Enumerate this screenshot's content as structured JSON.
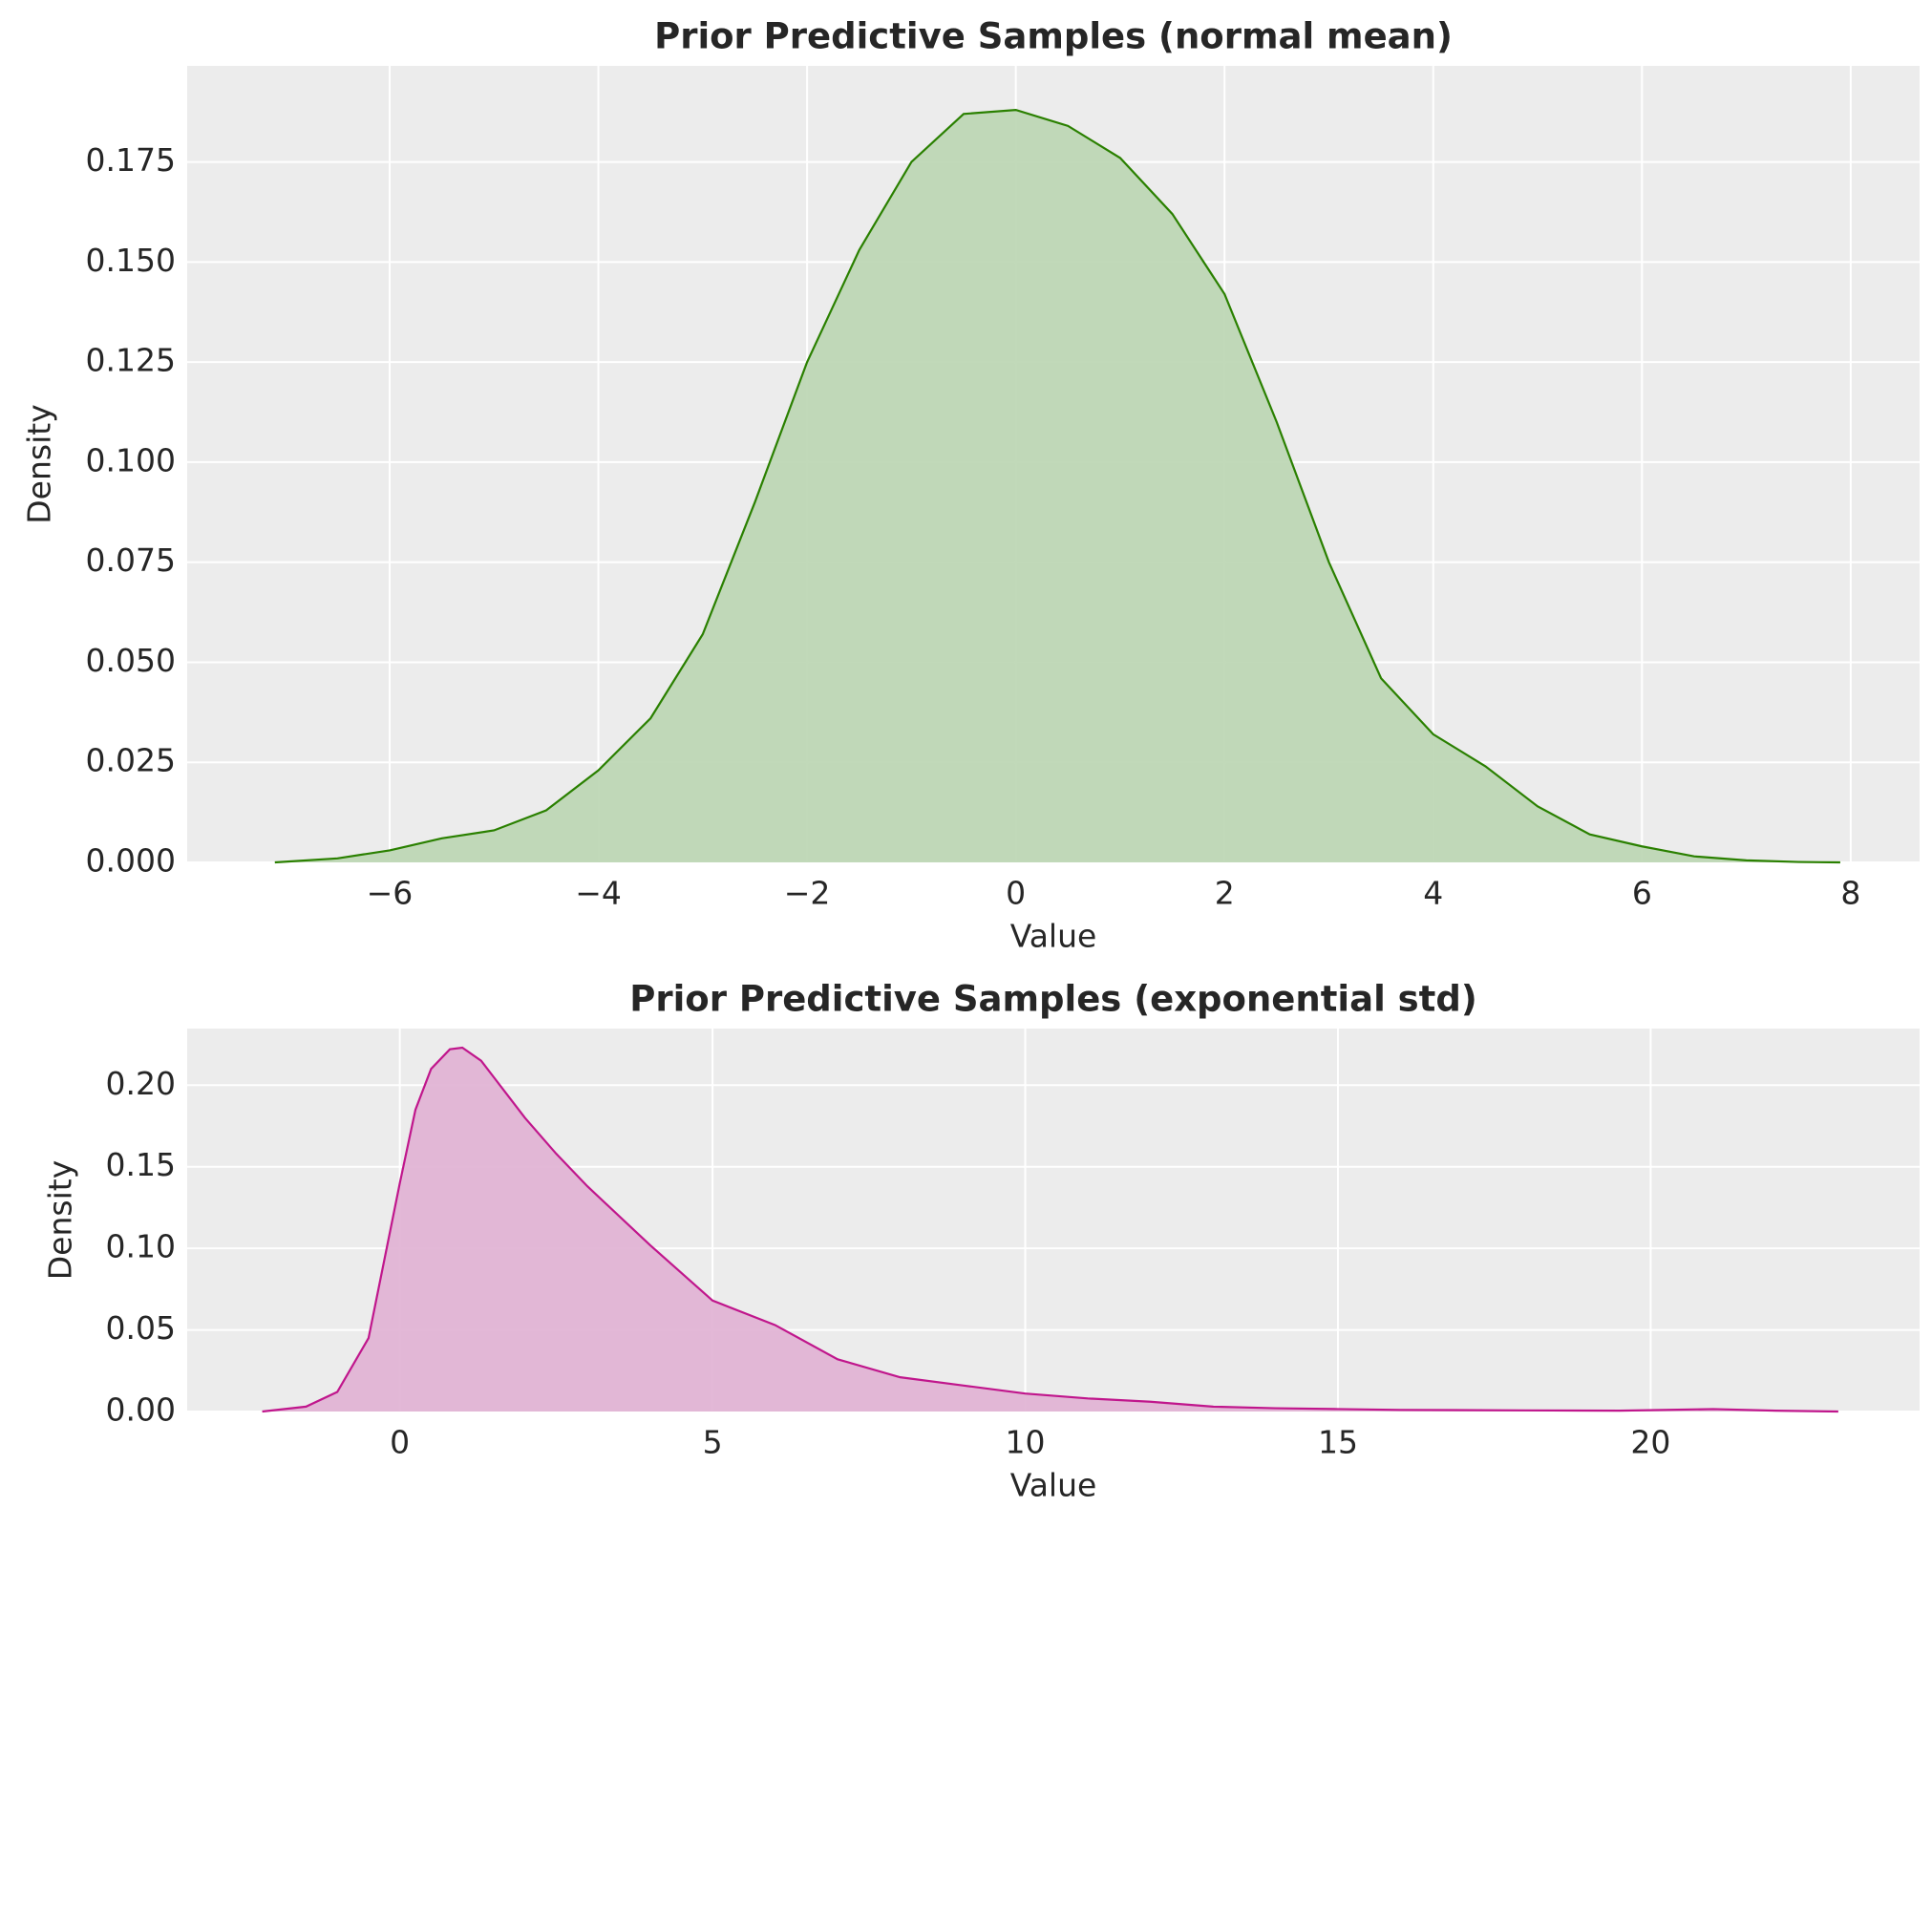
{
  "chart_data": [
    {
      "type": "area",
      "title": "Prior Predictive Samples (normal mean)",
      "x_label": "Value",
      "y_label": "Density",
      "x": [
        -7.1,
        -6.5,
        -6,
        -5.5,
        -5,
        -4.5,
        -4,
        -3.5,
        -3,
        -2.5,
        -2,
        -1.5,
        -1,
        -0.5,
        0,
        0.5,
        1,
        1.5,
        2,
        2.5,
        3,
        3.5,
        4,
        4.5,
        5,
        5.5,
        6,
        6.5,
        7,
        7.5,
        7.9
      ],
      "values": [
        0,
        0.001,
        0.003,
        0.006,
        0.008,
        0.013,
        0.023,
        0.036,
        0.057,
        0.09,
        0.125,
        0.153,
        0.175,
        0.187,
        0.188,
        0.184,
        0.176,
        0.162,
        0.142,
        0.11,
        0.075,
        0.046,
        0.032,
        0.024,
        0.014,
        0.007,
        0.004,
        0.0015,
        0.0005,
        0.0001,
        0
      ],
      "color": "#2a8000",
      "fill": "#bed7b5",
      "xlim": [
        -7.94,
        8.66
      ],
      "ylim": [
        0,
        0.199
      ],
      "xticks": [
        {
          "value": -6,
          "label": "−6"
        },
        {
          "value": -4,
          "label": "−4"
        },
        {
          "value": -2,
          "label": "−2"
        },
        0,
        2,
        4,
        6,
        8
      ],
      "yticks": [
        {
          "value": 0,
          "label": "0.000"
        },
        {
          "value": 0.025,
          "label": "0.025"
        },
        {
          "value": 0.05,
          "label": "0.050"
        },
        {
          "value": 0.075,
          "label": "0.075"
        },
        {
          "value": 0.1,
          "label": "0.100"
        },
        {
          "value": 0.125,
          "label": "0.125"
        },
        {
          "value": 0.15,
          "label": "0.150"
        },
        {
          "value": 0.175,
          "label": "0.175"
        }
      ],
      "grid": true
    },
    {
      "type": "area",
      "title": "Prior Predictive Samples (exponential std)",
      "x_label": "Value",
      "y_label": "Density",
      "x": [
        -2.2,
        -1.5,
        -1,
        -0.5,
        0,
        0.25,
        0.5,
        0.8,
        1,
        1.3,
        1.5,
        2,
        2.5,
        3,
        4,
        5,
        6,
        7,
        8,
        9,
        10,
        11,
        12,
        13,
        14,
        15,
        16,
        18,
        19.5,
        21,
        22,
        23
      ],
      "values": [
        0,
        0.003,
        0.012,
        0.045,
        0.14,
        0.185,
        0.21,
        0.222,
        0.223,
        0.215,
        0.205,
        0.18,
        0.158,
        0.138,
        0.102,
        0.068,
        0.053,
        0.032,
        0.021,
        0.016,
        0.011,
        0.008,
        0.006,
        0.003,
        0.002,
        0.0015,
        0.001,
        0.0007,
        0.0005,
        0.0015,
        0.0005,
        0
      ],
      "color": "#c0168c",
      "fill": "#e2b4d5",
      "xlim": [
        -3.4,
        24.3
      ],
      "ylim": [
        0,
        0.2347
      ],
      "xticks": [
        0,
        5,
        10,
        15,
        20
      ],
      "yticks": [
        {
          "value": 0,
          "label": "0.00"
        },
        {
          "value": 0.05,
          "label": "0.05"
        },
        {
          "value": 0.1,
          "label": "0.10"
        },
        {
          "value": 0.15,
          "label": "0.15"
        },
        {
          "value": 0.2,
          "label": "0.20"
        }
      ],
      "grid": true
    }
  ]
}
